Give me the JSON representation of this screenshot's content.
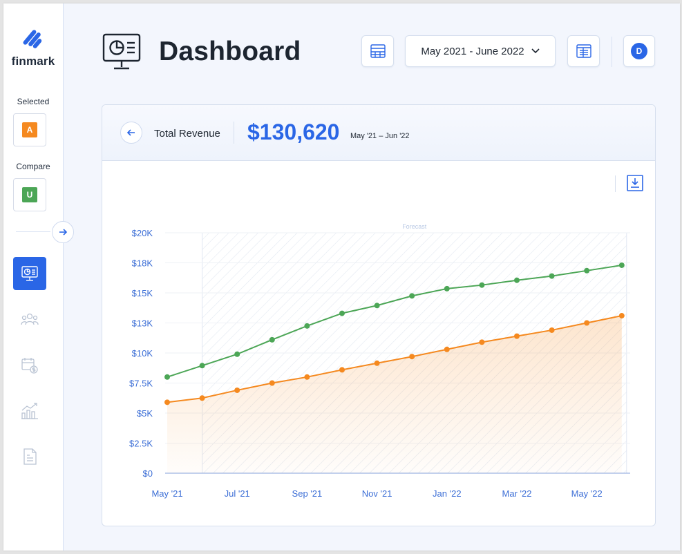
{
  "app": {
    "brand": "finmark"
  },
  "sidebar": {
    "selected_label": "Selected",
    "selected_chip": "A",
    "compare_label": "Compare",
    "compare_chip": "U",
    "nav": [
      {
        "icon": "dashboard-icon",
        "active": true
      },
      {
        "icon": "team-icon",
        "active": false
      },
      {
        "icon": "calendar-dollar-icon",
        "active": false
      },
      {
        "icon": "growth-chart-icon",
        "active": false
      },
      {
        "icon": "report-document-icon",
        "active": false
      }
    ]
  },
  "header": {
    "title": "Dashboard",
    "date_range": "May 2021 - June 2022",
    "avatar_initial": "D"
  },
  "card": {
    "metric_label": "Total Revenue",
    "metric_value": "$130,620",
    "metric_range": "May '21 – Jun '22"
  },
  "colors": {
    "accent": "#2a66e6",
    "series_a": "#f5891f",
    "series_u": "#4ca656",
    "chip_a": "#f5891f",
    "chip_u": "#4ca656"
  },
  "chart_data": {
    "type": "line",
    "forecast_label": "Forecast",
    "forecast_range": [
      "Jun '21",
      "Jun '22"
    ],
    "x": [
      "May '21",
      "Jun '21",
      "Jul '21",
      "Aug '21",
      "Sep '21",
      "Oct '21",
      "Nov '21",
      "Dec '21",
      "Jan '22",
      "Feb '22",
      "Mar '22",
      "Apr '22",
      "May '22",
      "Jun '22"
    ],
    "x_tick_labels": [
      "May '21",
      "Jul '21",
      "Sep '21",
      "Nov '21",
      "Jan '22",
      "Mar '22",
      "May '22"
    ],
    "y_ticks": [
      "$20K",
      "$18K",
      "$15K",
      "$13K",
      "$10K",
      "$7.5K",
      "$5K",
      "$2.5K",
      "$0"
    ],
    "ylim": [
      0,
      20000
    ],
    "series": [
      {
        "name": "U",
        "color": "#4ca656",
        "values": [
          8000,
          8950,
          9900,
          11100,
          12250,
          13300,
          13950,
          14750,
          15350,
          15650,
          16050,
          16400,
          16850,
          17300
        ]
      },
      {
        "name": "A",
        "color": "#f5891f",
        "values": [
          5900,
          6250,
          6900,
          7500,
          8000,
          8600,
          9150,
          9700,
          10300,
          10900,
          11400,
          11900,
          12500,
          13100
        ]
      }
    ]
  }
}
